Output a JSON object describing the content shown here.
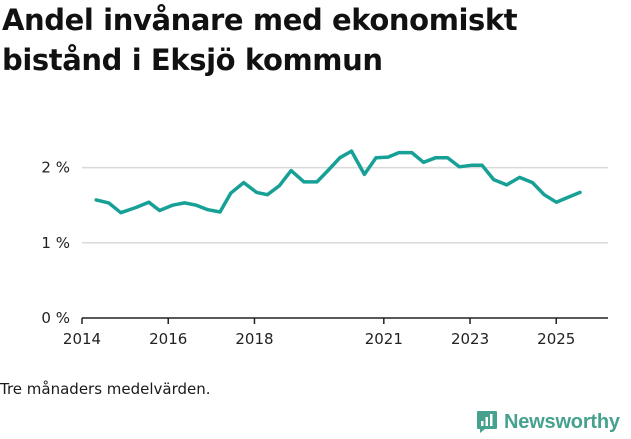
{
  "title": "Andel invånare med ekonomiskt bistånd i Eksjö kommun",
  "footnote": "Tre månaders medelvärden.",
  "brand": {
    "name": "Newsworthy",
    "color": "#46a28e",
    "icon": "bar-chart-speech-bubble-icon"
  },
  "colors": {
    "line": "#17a096",
    "grid": "#d9d9d9",
    "axis": "#222222"
  },
  "chart_data": {
    "type": "line",
    "title": "Andel invånare med ekonomiskt bistånd i Eksjö kommun",
    "xlabel": "",
    "ylabel": "",
    "unit": "%",
    "ylim": [
      0,
      2.5
    ],
    "xlim": [
      2014,
      2026.2
    ],
    "grid": true,
    "y_ticks": [
      {
        "value": 0,
        "label": "0 %"
      },
      {
        "value": 1,
        "label": "1 %"
      },
      {
        "value": 2,
        "label": "2 %"
      }
    ],
    "x_ticks": [
      {
        "value": 2014,
        "label": "2014"
      },
      {
        "value": 2016,
        "label": "2016"
      },
      {
        "value": 2018,
        "label": "2018"
      },
      {
        "value": 2021,
        "label": "2021"
      },
      {
        "value": 2023,
        "label": "2023"
      },
      {
        "value": 2025,
        "label": "2025"
      }
    ],
    "series": [
      {
        "name": "Andel invånare med ekonomiskt bistånd",
        "x": [
          2014.33,
          2014.62,
          2014.9,
          2015.25,
          2015.55,
          2015.8,
          2016.1,
          2016.38,
          2016.65,
          2016.92,
          2017.2,
          2017.45,
          2017.75,
          2018.05,
          2018.3,
          2018.58,
          2018.85,
          2019.15,
          2019.45,
          2019.72,
          2019.98,
          2020.25,
          2020.55,
          2020.82,
          2021.1,
          2021.35,
          2021.65,
          2021.92,
          2022.2,
          2022.48,
          2022.75,
          2023.03,
          2023.28,
          2023.55,
          2023.85,
          2024.15,
          2024.45,
          2024.72,
          2025.0,
          2025.25,
          2025.55
        ],
        "values": [
          1.57,
          1.53,
          1.4,
          1.47,
          1.54,
          1.43,
          1.5,
          1.53,
          1.5,
          1.44,
          1.41,
          1.66,
          1.8,
          1.67,
          1.64,
          1.76,
          1.96,
          1.81,
          1.81,
          1.97,
          2.13,
          2.22,
          1.91,
          2.13,
          2.14,
          2.2,
          2.2,
          2.07,
          2.13,
          2.13,
          2.01,
          2.03,
          2.03,
          1.84,
          1.77,
          1.87,
          1.8,
          1.64,
          1.54,
          1.6,
          1.67
        ]
      }
    ]
  }
}
